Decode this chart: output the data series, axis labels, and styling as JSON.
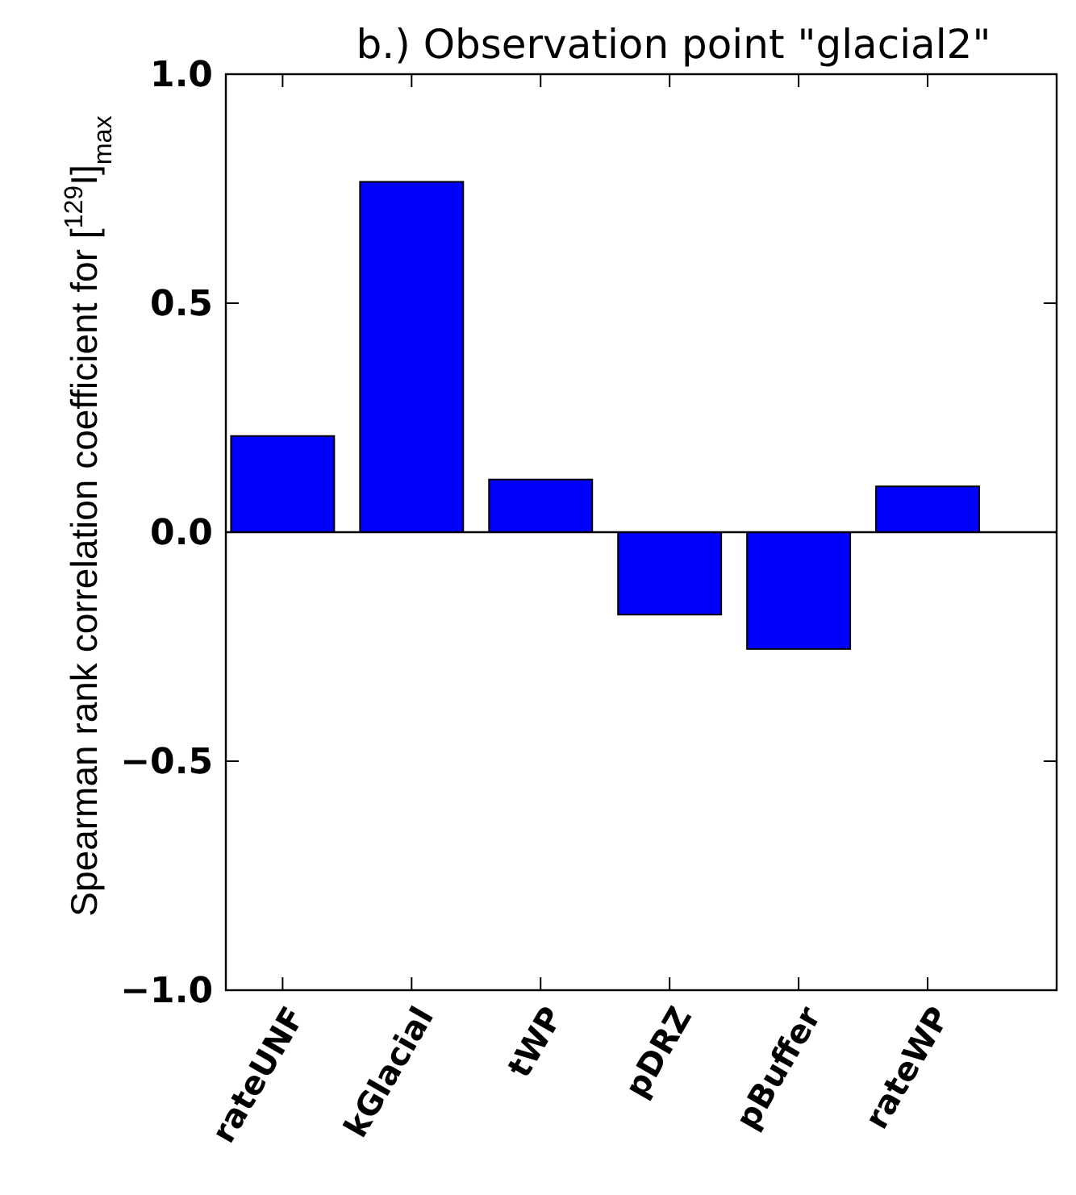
{
  "chart_data": {
    "type": "bar",
    "title": "b.) Observation point \"glacial2\"",
    "ylabel": "Spearman rank correlation coefficient for [$^{129}$I]$_{max}$",
    "categories": [
      "rateUNF",
      "kGlacial",
      "tWP",
      "pDRZ",
      "pBuffer",
      "rateWP"
    ],
    "values": [
      0.21,
      0.765,
      0.115,
      -0.18,
      -0.255,
      0.1
    ],
    "color": "#0000ff",
    "ylim": [
      -1,
      1
    ],
    "yticks": [
      {
        "value": -1,
        "label": "−1.0"
      },
      {
        "value": -0.5,
        "label": "−0.5"
      },
      {
        "value": 0,
        "label": "0.0"
      },
      {
        "value": 0.5,
        "label": "0.5"
      },
      {
        "value": 1,
        "label": "1.0"
      }
    ],
    "ref_lines": [
      {
        "axis": "y",
        "value": 0,
        "color": "#000000"
      }
    ],
    "grid": false
  }
}
